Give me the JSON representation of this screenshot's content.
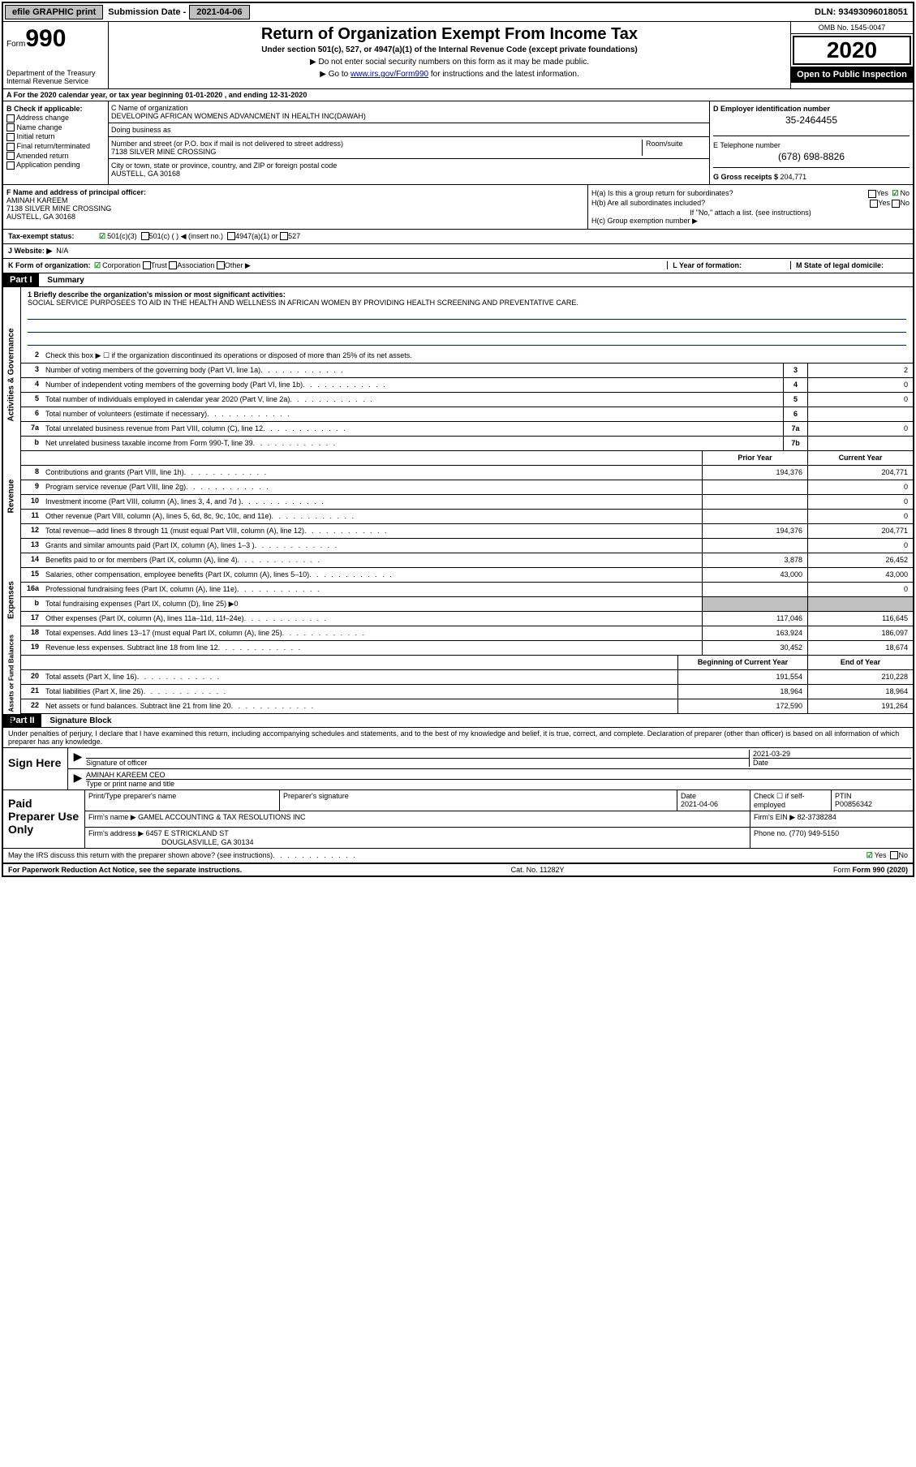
{
  "topbar": {
    "efile": "efile GRAPHIC print",
    "sub_label": "Submission Date - ",
    "sub_date": "2021-04-06",
    "dln": "DLN: 93493096018051"
  },
  "header": {
    "form_word": "Form",
    "form_num": "990",
    "dept": "Department of the Treasury\nInternal Revenue Service",
    "title": "Return of Organization Exempt From Income Tax",
    "subtitle": "Under section 501(c), 527, or 4947(a)(1) of the Internal Revenue Code (except private foundations)",
    "arrow1": "▶ Do not enter social security numbers on this form as it may be made public.",
    "arrow2_pre": "▶ Go to ",
    "arrow2_link": "www.irs.gov/Form990",
    "arrow2_post": " for instructions and the latest information.",
    "omb": "OMB No. 1545-0047",
    "year": "2020",
    "open": "Open to Public Inspection"
  },
  "sectionA": "A For the 2020 calendar year, or tax year beginning 01-01-2020    , and ending 12-31-2020",
  "colB": {
    "label": "B Check if applicable:",
    "opts": [
      "Address change",
      "Name change",
      "Initial return",
      "Final return/terminated",
      "Amended return",
      "Application pending"
    ]
  },
  "colC": {
    "name_label": "C Name of organization",
    "name": "DEVELOPING AFRICAN WOMENS ADVANCMENT IN HEALTH INC(DAWAH)",
    "dba_label": "Doing business as",
    "addr_label": "Number and street (or P.O. box if mail is not delivered to street address)",
    "room_label": "Room/suite",
    "addr": "7138 SILVER MINE CROSSING",
    "city_label": "City or town, state or province, country, and ZIP or foreign postal code",
    "city": "AUSTELL, GA  30168"
  },
  "colD": {
    "ein_label": "D Employer identification number",
    "ein": "35-2464455",
    "tel_label": "E Telephone number",
    "tel": "(678) 698-8826",
    "gross_label": "G Gross receipts $ ",
    "gross": "204,771"
  },
  "colF": {
    "label": "F  Name and address of principal officer:",
    "name": "AMINAH KAREEM",
    "addr1": "7138 SILVER MINE CROSSING",
    "addr2": "AUSTELL, GA  30168"
  },
  "colH": {
    "ha": "H(a)  Is this a group return for subordinates?",
    "hb": "H(b)  Are all subordinates included?",
    "hb_note": "If \"No,\" attach a list. (see instructions)",
    "hc": "H(c)  Group exemption number ▶",
    "yes": "Yes",
    "no": "No"
  },
  "taxExempt": {
    "label": "Tax-exempt status:",
    "o1": "501(c)(3)",
    "o2": "501(c) (   ) ◀ (insert no.)",
    "o3": "4947(a)(1) or",
    "o4": "527"
  },
  "websiteJ": {
    "label": "J Website: ▶",
    "val": "N/A"
  },
  "lineK": {
    "label": "K Form of organization:",
    "corp": "Corporation",
    "trust": "Trust",
    "assoc": "Association",
    "other": "Other ▶",
    "L": "L Year of formation:",
    "M": "M State of legal domicile:"
  },
  "part1": {
    "header": "Part I",
    "title": "Summary",
    "q1": "1  Briefly describe the organization's mission or most significant activities:",
    "mission": "SOCIAL SERVICE PURPOSEES TO AID IN THE HEALTH AND WELLNESS IN AFRICAN WOMEN BY PROVIDING HEALTH SCREENING AND PREVENTATIVE CARE.",
    "q2": "Check this box ▶ ☐  if the organization discontinued its operations or disposed of more than 25% of its net assets.",
    "sideA": "Activities & Governance",
    "sideR": "Revenue",
    "sideE": "Expenses",
    "sideN": "Net Assets or Fund Balances",
    "rows_ag": [
      {
        "n": "3",
        "t": "Number of voting members of the governing body (Part VI, line 1a)",
        "box": "3",
        "v": "2"
      },
      {
        "n": "4",
        "t": "Number of independent voting members of the governing body (Part VI, line 1b)",
        "box": "4",
        "v": "0"
      },
      {
        "n": "5",
        "t": "Total number of individuals employed in calendar year 2020 (Part V, line 2a)",
        "box": "5",
        "v": "0"
      },
      {
        "n": "6",
        "t": "Total number of volunteers (estimate if necessary)",
        "box": "6",
        "v": ""
      },
      {
        "n": "7a",
        "t": "Total unrelated business revenue from Part VIII, column (C), line 12",
        "box": "7a",
        "v": "0"
      },
      {
        "n": "b",
        "t": "Net unrelated business taxable income from Form 990-T, line 39",
        "box": "7b",
        "v": ""
      }
    ],
    "hdr_prior": "Prior Year",
    "hdr_curr": "Current Year",
    "rows_rev": [
      {
        "n": "8",
        "t": "Contributions and grants (Part VIII, line 1h)",
        "p": "194,376",
        "c": "204,771"
      },
      {
        "n": "9",
        "t": "Program service revenue (Part VIII, line 2g)",
        "p": "",
        "c": "0"
      },
      {
        "n": "10",
        "t": "Investment income (Part VIII, column (A), lines 3, 4, and 7d )",
        "p": "",
        "c": "0"
      },
      {
        "n": "11",
        "t": "Other revenue (Part VIII, column (A), lines 5, 6d, 8c, 9c, 10c, and 11e)",
        "p": "",
        "c": "0"
      },
      {
        "n": "12",
        "t": "Total revenue—add lines 8 through 11 (must equal Part VIII, column (A), line 12)",
        "p": "194,376",
        "c": "204,771"
      }
    ],
    "rows_exp": [
      {
        "n": "13",
        "t": "Grants and similar amounts paid (Part IX, column (A), lines 1–3 )",
        "p": "",
        "c": "0"
      },
      {
        "n": "14",
        "t": "Benefits paid to or for members (Part IX, column (A), line 4)",
        "p": "3,878",
        "c": "26,452"
      },
      {
        "n": "15",
        "t": "Salaries, other compensation, employee benefits (Part IX, column (A), lines 5–10)",
        "p": "43,000",
        "c": "43,000"
      },
      {
        "n": "16a",
        "t": "Professional fundraising fees (Part IX, column (A), line 11e)",
        "p": "",
        "c": "0"
      },
      {
        "n": "b",
        "t": "Total fundraising expenses (Part IX, column (D), line 25) ▶0",
        "shaded": true
      },
      {
        "n": "17",
        "t": "Other expenses (Part IX, column (A), lines 11a–11d, 11f–24e)",
        "p": "117,046",
        "c": "116,645"
      },
      {
        "n": "18",
        "t": "Total expenses. Add lines 13–17 (must equal Part IX, column (A), line 25)",
        "p": "163,924",
        "c": "186,097"
      },
      {
        "n": "19",
        "t": "Revenue less expenses. Subtract line 18 from line 12",
        "p": "30,452",
        "c": "18,674"
      }
    ],
    "hdr_begin": "Beginning of Current Year",
    "hdr_end": "End of Year",
    "rows_net": [
      {
        "n": "20",
        "t": "Total assets (Part X, line 16)",
        "p": "191,554",
        "c": "210,228"
      },
      {
        "n": "21",
        "t": "Total liabilities (Part X, line 26)",
        "p": "18,964",
        "c": "18,964"
      },
      {
        "n": "22",
        "t": "Net assets or fund balances. Subtract line 21 from line 20",
        "p": "172,590",
        "c": "191,264"
      }
    ]
  },
  "part2": {
    "header": "Part II",
    "title": "Signature Block",
    "decl": "Under penalties of perjury, I declare that I have examined this return, including accompanying schedules and statements, and to the best of my knowledge and belief, it is true, correct, and complete. Declaration of preparer (other than officer) is based on all information of which preparer has any knowledge.",
    "sign_here": "Sign Here",
    "sig_officer": "Signature of officer",
    "sig_date": "2021-03-29",
    "date_label": "Date",
    "officer_name": "AMINAH KAREEM  CEO",
    "type_label": "Type or print name and title",
    "paid_label": "Paid Preparer Use Only",
    "prep_name_label": "Print/Type preparer's name",
    "prep_sig_label": "Preparer's signature",
    "prep_date_label": "Date",
    "prep_date": "2021-04-06",
    "check_label": "Check ☐ if self-employed",
    "ptin_label": "PTIN",
    "ptin": "P00856342",
    "firm_name_label": "Firm's name    ▶",
    "firm_name": "GAMEL ACCOUNTING & TAX RESOLUTIONS INC",
    "firm_ein_label": "Firm's EIN ▶",
    "firm_ein": "82-3738284",
    "firm_addr_label": "Firm's address ▶",
    "firm_addr1": "6457 E STRICKLAND ST",
    "firm_addr2": "DOUGLASVILLE, GA  30134",
    "phone_label": "Phone no.",
    "phone": "(770) 949-5150",
    "discuss": "May the IRS discuss this return with the preparer shown above? (see instructions)",
    "yes": "Yes",
    "no": "No"
  },
  "footer": {
    "left": "For Paperwork Reduction Act Notice, see the separate instructions.",
    "mid": "Cat. No. 11282Y",
    "right": "Form 990 (2020)"
  }
}
